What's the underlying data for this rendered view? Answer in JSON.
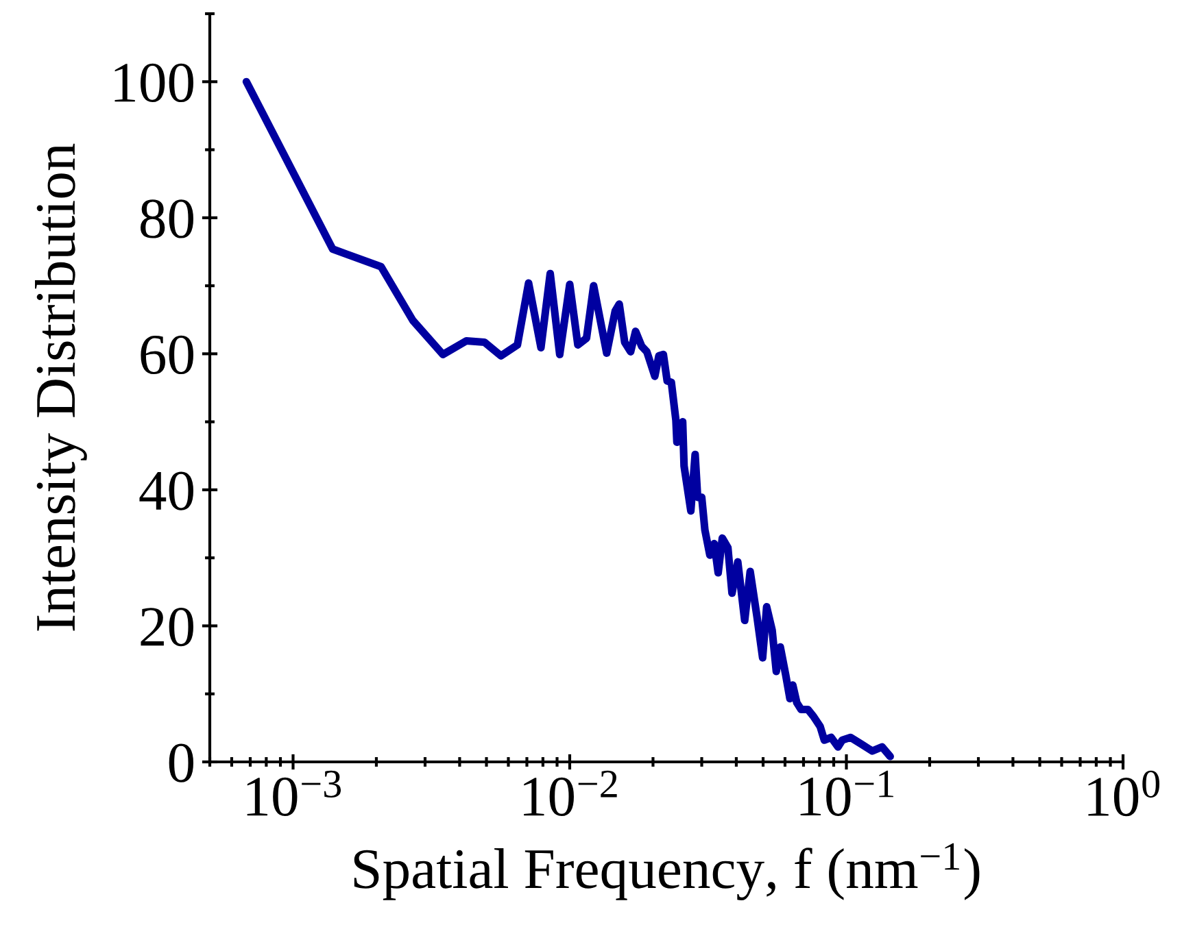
{
  "chart_data": {
    "type": "line",
    "xlabel": "Spatial Frequency, f (nm$^{−1}$)",
    "ylabel": "Intensity Distribution",
    "log": "x",
    "xlim": [
      0.0005,
      1
    ],
    "ylim": [
      0,
      110
    ],
    "xticks": [
      {
        "value": 0.001,
        "label": "10$^{−3}$"
      },
      {
        "value": 0.01,
        "label": "10$^{−2}$"
      },
      {
        "value": 0.1,
        "label": "10$^{−1}$"
      },
      {
        "value": 1,
        "label": "10$^{0}$"
      }
    ],
    "yticks": [
      0,
      20,
      40,
      60,
      80,
      100
    ],
    "grid": false,
    "legend": false,
    "marker": "none",
    "line_style": "solid",
    "series": [
      {
        "color": "#0000a0",
        "x": [
          0.000678,
          0.00139,
          0.00208,
          0.00271,
          0.00348,
          0.00423,
          0.00492,
          0.00564,
          0.00647,
          0.0071,
          0.00787,
          0.0085,
          0.0092,
          0.01,
          0.0107,
          0.0115,
          0.0122,
          0.0136,
          0.0146,
          0.0151,
          0.0158,
          0.0166,
          0.0173,
          0.0182,
          0.019,
          0.0203,
          0.021,
          0.0218,
          0.0225,
          0.0233,
          0.0242,
          0.0244,
          0.0256,
          0.0259,
          0.0274,
          0.0284,
          0.029,
          0.03,
          0.0308,
          0.0321,
          0.0333,
          0.0344,
          0.0356,
          0.0373,
          0.0386,
          0.0405,
          0.0429,
          0.0449,
          0.0475,
          0.0498,
          0.0515,
          0.0539,
          0.0558,
          0.0577,
          0.0604,
          0.0625,
          0.064,
          0.0662,
          0.0686,
          0.0726,
          0.076,
          0.0804,
          0.0832,
          0.0881,
          0.0933,
          0.0966,
          0.1035,
          0.1135,
          0.124,
          0.1346,
          0.144
        ],
        "values": [
          100,
          75.4,
          72.8,
          64.9,
          59.9,
          61.9,
          61.7,
          59.7,
          61.3,
          70.4,
          60.9,
          71.8,
          59.9,
          70.2,
          61.3,
          62.3,
          70.0,
          60.1,
          66.3,
          67.3,
          61.7,
          60.3,
          63.3,
          61.1,
          60.3,
          56.7,
          59.7,
          59.9,
          56.0,
          55.8,
          50.2,
          47.0,
          50.0,
          43.5,
          36.9,
          45.2,
          38.9,
          38.9,
          34.1,
          30.4,
          32.1,
          27.8,
          32.9,
          31.5,
          24.8,
          29.4,
          20.8,
          28.0,
          21.4,
          15.3,
          22.8,
          19.4,
          13.3,
          16.9,
          12.7,
          9.3,
          11.3,
          8.7,
          7.7,
          7.7,
          6.7,
          5.2,
          3.2,
          3.6,
          2.2,
          3.2,
          3.6,
          2.6,
          1.6,
          2.2,
          0.8
        ]
      }
    ]
  }
}
